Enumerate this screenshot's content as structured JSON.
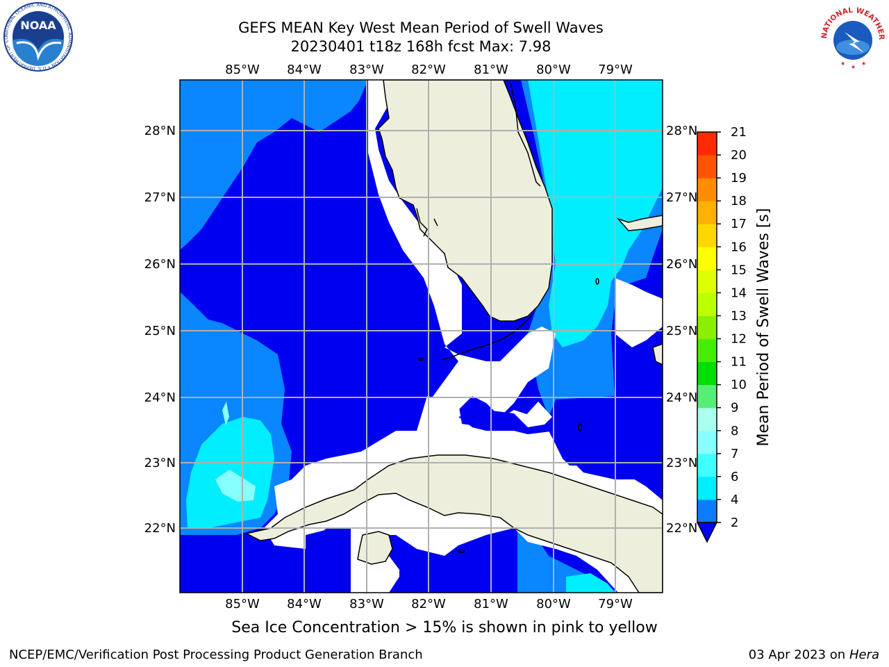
{
  "title": {
    "line1": "GEFS MEAN Key West Mean Period of Swell Waves",
    "line2": "20230401 t18z 168h fcst   Max: 7.98"
  },
  "map": {
    "lon_labels": [
      "85°W",
      "84°W",
      "83°W",
      "82°W",
      "81°W",
      "80°W",
      "79°W"
    ],
    "lat_labels": [
      "28°N",
      "27°N",
      "26°N",
      "25°N",
      "24°N",
      "23°N",
      "22°N"
    ],
    "colors": {
      "ocean_2_4": "#0000f0",
      "ocean_4_6": "#0a86ff",
      "ocean_6_8": "#00eeff",
      "ocean_8_9": "#88ffff",
      "land": "#eeeedd",
      "grid": "#b0b0b0"
    }
  },
  "colorbar": {
    "label": "Mean Period of Swell Waves [s]",
    "ticks": [
      "2",
      "4",
      "6",
      "7",
      "8",
      "9",
      "10",
      "11",
      "12",
      "13",
      "14",
      "15",
      "16",
      "17",
      "18",
      "19",
      "20",
      "21"
    ],
    "colors": [
      "#0000ff",
      "#0a7dff",
      "#00eeff",
      "#3fffff",
      "#88ffff",
      "#aaffee",
      "#55ee77",
      "#00dd00",
      "#44ee00",
      "#88f000",
      "#bbff00",
      "#ddff00",
      "#ffff00",
      "#ffd700",
      "#ffb000",
      "#ff8c00",
      "#ff5500",
      "#ff2a00",
      "#ff0000"
    ]
  },
  "caption": "Sea Ice Concentration > 15% is shown in pink to yellow",
  "credit": {
    "left": "NCEP/EMC/Verification Post Processing Product Generation Branch",
    "right_date": "03 Apr 2023 on ",
    "right_host": "Hera"
  },
  "logos": {
    "noaa_text": "NOAA",
    "noaa_ring": "NATIONAL OCEANIC AND ATMOSPHERIC ADMINISTRATION • U.S. DEPARTMENT OF COMMERCE",
    "nws_ring": "NATIONAL WEATHER SERVICE"
  }
}
